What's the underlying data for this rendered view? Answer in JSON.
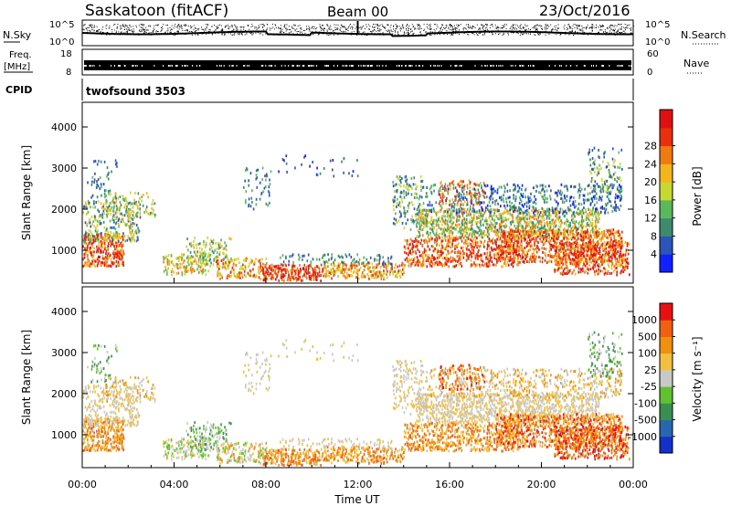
{
  "header": {
    "station": "Saskatoon (fitACF)",
    "beam": "Beam 00",
    "date": "23/Oct/2016"
  },
  "noise_panel": {
    "left_label": "N.Sky",
    "left_ticks": [
      "10^5",
      "10^0"
    ],
    "right_label": "N.Search",
    "right_ticks": [
      "10^5",
      "10^0"
    ]
  },
  "freq_panel": {
    "left_label_1": "Freq.",
    "left_label_2": "[MHz]",
    "left_ticks": [
      "18",
      "8"
    ],
    "right_label": "Nave",
    "right_ticks": [
      "60",
      "0"
    ]
  },
  "cpid_panel": {
    "label": "CPID",
    "program": "twofsound 3503"
  },
  "chart_data": [
    {
      "type": "heatmap",
      "panel": "power",
      "ylabel": "Slant Range [km]",
      "ylim": [
        200,
        4600
      ],
      "yticks": [
        "1000",
        "2000",
        "3000",
        "4000"
      ],
      "xlim": [
        0,
        24
      ],
      "colorbar_label": "Power [dB]",
      "colorbar_ticks": [
        "4",
        "8",
        "12",
        "16",
        "20",
        "24",
        "28"
      ],
      "colorbar_colors": [
        "#1020ff",
        "#2b55b8",
        "#3e8a6e",
        "#5cb85c",
        "#c8d832",
        "#f2b51e",
        "#f07a10",
        "#e83010",
        "#e01010"
      ]
    },
    {
      "type": "heatmap",
      "panel": "velocity",
      "ylabel": "Slant Range [km]",
      "ylim": [
        200,
        4600
      ],
      "yticks": [
        "1000",
        "2000",
        "3000",
        "4000"
      ],
      "xlim": [
        0,
        24
      ],
      "xticks": [
        "00:00",
        "04:00",
        "08:00",
        "12:00",
        "16:00",
        "20:00",
        "00:00"
      ],
      "xlabel": "Time UT",
      "colorbar_label": "Velocity [m s⁻¹]",
      "colorbar_ticks": [
        "1000",
        "500",
        "100",
        "25",
        "-25",
        "-100",
        "-500",
        "-1000"
      ],
      "colorbar_colors": [
        "#1530c8",
        "#2a66b0",
        "#3b8e52",
        "#60c030",
        "#c8c8c8",
        "#f2c040",
        "#f09010",
        "#f06010",
        "#e81010"
      ]
    }
  ]
}
